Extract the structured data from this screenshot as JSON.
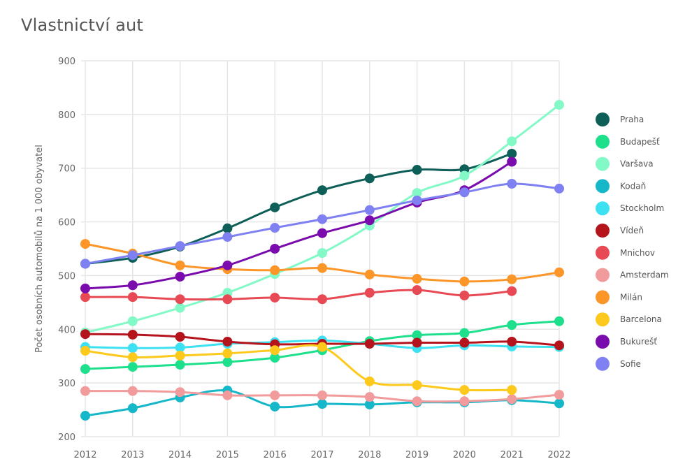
{
  "chart_data": {
    "type": "line",
    "title": "Vlastnictví aut",
    "xlabel": "",
    "ylabel": "Počet osobních automobilů na 1 000 obyvatel",
    "ylim": [
      200,
      900
    ],
    "yticks": [
      "200",
      "300",
      "400",
      "500",
      "600",
      "700",
      "800",
      "900"
    ],
    "x": [
      "2012",
      "2013",
      "2014",
      "2015",
      "2016",
      "2017",
      "2018",
      "2019",
      "2020",
      "2021",
      "2022"
    ],
    "grid": true,
    "legend": "right",
    "series": [
      {
        "name": "Praha",
        "color": "#0e5f58",
        "values": [
          522,
          533,
          554,
          588,
          627,
          659,
          681,
          697,
          698,
          727,
          null
        ]
      },
      {
        "name": "Budapešť",
        "color": "#1ee08c",
        "values": [
          326,
          330,
          334,
          339,
          347,
          361,
          378,
          389,
          393,
          408,
          415
        ]
      },
      {
        "name": "Varšava",
        "color": "#82f9c6",
        "values": [
          394,
          415,
          440,
          468,
          503,
          542,
          593,
          654,
          686,
          750,
          818
        ]
      },
      {
        "name": "Kodaň",
        "color": "#15b7c8",
        "values": [
          239,
          253,
          273,
          286,
          256,
          261,
          260,
          264,
          264,
          268,
          262
        ]
      },
      {
        "name": "Stockholm",
        "color": "#3ee1f1",
        "values": [
          367,
          365,
          366,
          373,
          376,
          379,
          373,
          365,
          370,
          368,
          367
        ]
      },
      {
        "name": "Vídeň",
        "color": "#b5141c",
        "values": [
          391,
          390,
          386,
          377,
          372,
          373,
          373,
          375,
          375,
          377,
          370
        ]
      },
      {
        "name": "Mnichov",
        "color": "#e84a55",
        "values": [
          460,
          460,
          456,
          456,
          459,
          456,
          468,
          473,
          463,
          471,
          null
        ]
      },
      {
        "name": "Amsterdam",
        "color": "#f29b9c",
        "values": [
          285,
          285,
          283,
          277,
          277,
          277,
          274,
          266,
          266,
          270,
          278
        ]
      },
      {
        "name": "Milán",
        "color": "#fc9628",
        "values": [
          559,
          541,
          519,
          512,
          510,
          514,
          502,
          494,
          489,
          493,
          506
        ]
      },
      {
        "name": "Barcelona",
        "color": "#fdc91c",
        "values": [
          360,
          348,
          351,
          355,
          361,
          367,
          303,
          296,
          287,
          287,
          null
        ]
      },
      {
        "name": "Bukurešť",
        "color": "#7a0bac",
        "values": [
          476,
          482,
          498,
          519,
          550,
          579,
          603,
          636,
          659,
          712,
          null
        ]
      },
      {
        "name": "Sofie",
        "color": "#7f81f2",
        "values": [
          522,
          538,
          555,
          572,
          589,
          605,
          622,
          640,
          655,
          671,
          662
        ]
      }
    ]
  }
}
